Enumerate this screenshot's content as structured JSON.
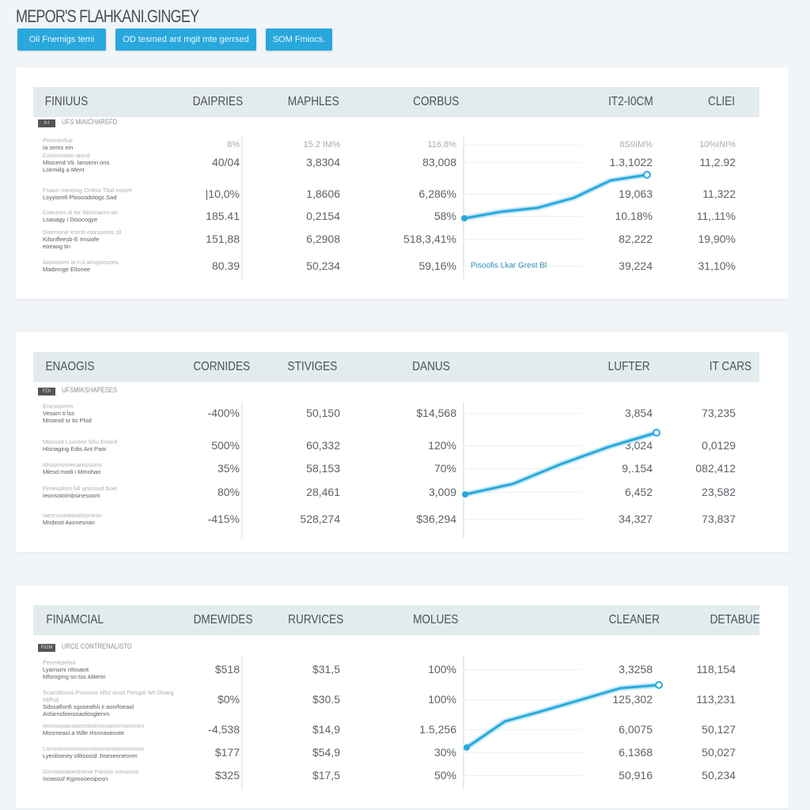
{
  "page": {
    "title": "MEPOR'S FLAHKANI.GINGEY"
  },
  "buttons": [
    {
      "label": "Oil Fnemigs temi"
    },
    {
      "label": "OD tesmed ant mgit mte gerrsed"
    },
    {
      "label": "SOM Fmiocs."
    }
  ],
  "colors": {
    "accent": "#29a8dc",
    "header_bg": "#e3ebef",
    "background": "#f1f5f8"
  },
  "tables": [
    {
      "headers": [
        "FINIUUS",
        "DAIPRIES",
        "MAPHLES",
        "CORBUS",
        "IT2-I0CM",
        "CLIEI"
      ],
      "badge": "Il-I",
      "subtitle": "UFS MIAICHAREFD",
      "rows": [
        {
          "label": [
            "Pesmenfue",
            "Ia sems ein"
          ],
          "values": [
            "8%",
            "15.2 IM%",
            "116.8%",
            "",
            "8S9IM%",
            "10%INI%"
          ],
          "faint": true
        },
        {
          "label": [
            "Coisomsten iasnd",
            "Mtocend Vti. lanserin ons",
            "Lsemiilg a Ment"
          ],
          "values": [
            "40/04",
            "3,8304",
            "83,008",
            "",
            "1.3,1022",
            "11,2.92"
          ]
        },
        {
          "label": [
            "Fsaon mereing Onfiso Tibd Inoset",
            "Lsyyiomfi Plososdologs Sad"
          ],
          "values": [
            "|10,0%",
            "1,8606",
            "6,286%",
            "",
            "19,063",
            "11,322"
          ]
        },
        {
          "label": [
            "Coeuses di ter Wsonaom an",
            "Lsaoagy i Disocogye"
          ],
          "values": [
            "185.41",
            "0,2154",
            "58%",
            "",
            "10.18%",
            "11,.11%"
          ]
        },
        {
          "label": [
            "Doemone Vsrnti elorsooeis sll",
            "Kifonffeesb-E Imsiofe",
            "eoeaog tin"
          ],
          "values": [
            "151,88",
            "6,2908",
            "518,3,41%",
            "",
            "82,222",
            "19,90%"
          ]
        },
        {
          "label": [
            "Aeonsomi at n ii aesgoesnes",
            "Madinnge Ellonee"
          ],
          "values": [
            "80.39",
            "50,234",
            "59,16%",
            "Pisoofis Lkar Grest Bl",
            "39,224",
            "31,10%"
          ]
        }
      ],
      "trend": [
        0,
        0.15,
        0.24,
        0.47,
        0.87,
        1
      ]
    },
    {
      "headers": [
        "ENAOGIS",
        "CORNIDES",
        "STIVIGES",
        "DANUS",
        "LUFTER",
        "IT CARS"
      ],
      "badge": "FOI",
      "subtitle": "UFSMIKSHAPESES",
      "rows": [
        {
          "label": [
            "Enesoprem",
            "Vesam ti lss",
            "Mnseod sr tis Plod"
          ],
          "values": [
            "-400%",
            "50,150",
            "$14,568",
            "",
            "3,854",
            "73,235"
          ]
        },
        {
          "label": [
            "Mosood Lsonteo Shu Enonif",
            "Hlsnaging Edis Ant Paoi"
          ],
          "values": [
            "500%",
            "60,332",
            "120%",
            "",
            "3,024",
            "0,0129"
          ]
        },
        {
          "label": [
            "Mnsonsnoeuansosons",
            "Mlesd modi i Mmohan"
          ],
          "values": [
            "35%",
            "58,153",
            "70%",
            "",
            "9,.154",
            "082,412"
          ]
        },
        {
          "label": [
            "Fimesolnm Nll ansisoof boel",
            "Ieonsoioimbsinesoom"
          ],
          "values": [
            "80%",
            "28,461",
            "3,009",
            "",
            "6,452",
            "23,582"
          ]
        },
        {
          "label": [
            "Iaesnoseiooselsoneso",
            "Mndeoit Aiomesnan"
          ],
          "values": [
            "-415%",
            "528,274",
            "$36,294",
            "",
            "34,327",
            "73,837"
          ]
        }
      ],
      "trend": [
        0,
        0.17,
        0.49,
        0.77,
        1
      ]
    },
    {
      "headers": [
        "FINAMCIAL",
        "DMEWIDES",
        "RURVICES",
        "MOLUES",
        "CLEANER",
        "DETABUE"
      ],
      "badge": "FIGM",
      "subtitle": "URCE CONTRENALISTO",
      "rows": [
        {
          "label": [
            "Pesmepeisa",
            "Lyamsmi nfosaiot",
            "Mfsmgmg sn tos Alitemi"
          ],
          "values": [
            "$518",
            "$31,5",
            "100%",
            "",
            "3,3258",
            "118,154"
          ]
        },
        {
          "label": [
            "Scansfoous Ponmsis Mfsl ansd Flesgal Wt Sloarg Miffsd",
            "Sdssaflonfi sgoseafsli Ii aon/foeaol",
            "Asfarnsfoeisoaofosglenm"
          ],
          "values": [
            "$0%",
            "$30.5",
            "100%",
            "",
            "125,302",
            "113,231"
          ]
        },
        {
          "label": [
            "Iennsiooansiseomoeiossseiomseonsm",
            "Mosmeasi a Wlle Hsnnaseoste"
          ],
          "values": [
            "-4,538",
            "$14,9",
            "1.5,256",
            "",
            "6,0075",
            "50,127"
          ]
        },
        {
          "label": [
            "Lsmeononnonsonsosononosimonsoos",
            "Lyeoliomey sfilioosid Jmeseoneonm"
          ],
          "values": [
            "$177",
            "$54,9",
            "30%",
            "",
            "6,1368",
            "50,027"
          ]
        },
        {
          "label": [
            "Dimseonaoestsmie Fiassis mesoosn",
            "Isoasosf Kgonooeoiposn"
          ],
          "values": [
            "$325",
            "$17,5",
            "50%",
            "",
            "50,916",
            "50,234"
          ]
        }
      ],
      "trend": [
        0,
        0.42,
        0.59,
        0.77,
        0.95,
        1
      ]
    }
  ]
}
